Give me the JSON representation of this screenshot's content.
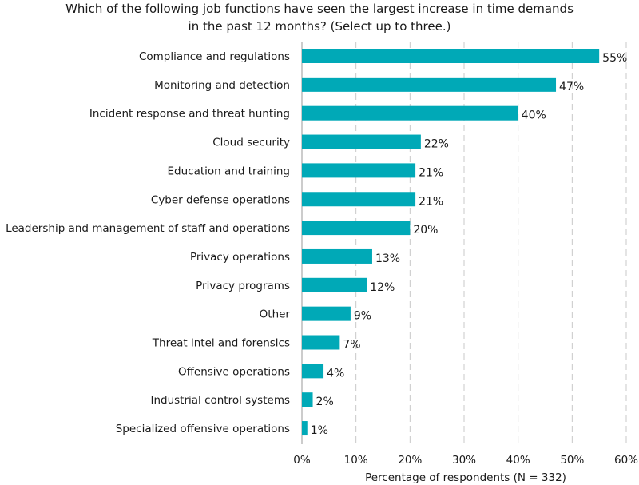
{
  "chart_data": {
    "type": "bar",
    "orientation": "horizontal",
    "title": [
      "Which of the following job functions have seen the largest increase in time demands",
      "in the past 12 months? (Select up to three.)"
    ],
    "categories": [
      "Compliance and regulations",
      "Monitoring and detection",
      "Incident response and threat hunting",
      "Cloud security",
      "Education and training",
      "Cyber defense operations",
      "Leadership and management of staff and operations",
      "Privacy operations",
      "Privacy programs",
      "Other",
      "Threat intel and forensics",
      "Offensive operations",
      "Industrial control systems",
      "Specialized offensive operations"
    ],
    "values": [
      55,
      47,
      40,
      22,
      21,
      21,
      20,
      13,
      12,
      9,
      7,
      4,
      2,
      1
    ],
    "value_labels": [
      "55%",
      "47%",
      "40%",
      "22%",
      "21%",
      "21%",
      "20%",
      "13%",
      "12%",
      "9%",
      "7%",
      "4%",
      "2%",
      "1%"
    ],
    "xlim": [
      0,
      60
    ],
    "xticks": [
      0,
      10,
      20,
      30,
      40,
      50,
      60
    ],
    "xtick_labels": [
      "0%",
      "10%",
      "20%",
      "30%",
      "40%",
      "50%",
      "60%"
    ],
    "xlabel": "Percentage of respondents (N = 332)",
    "ylabel": "",
    "grid": true,
    "bar_color": "#00a9b7",
    "grid_color": "#c8c8c8"
  }
}
